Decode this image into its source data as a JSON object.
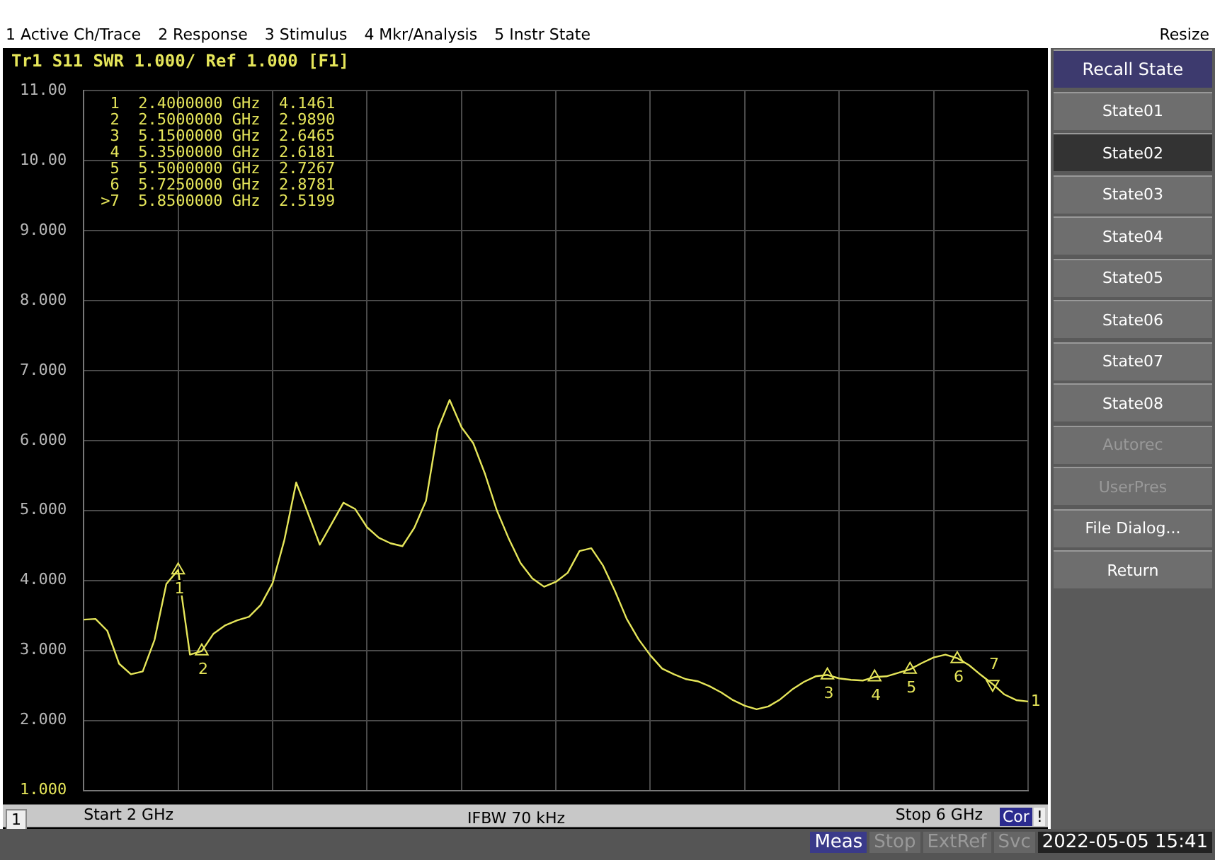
{
  "chart_data": {
    "type": "line",
    "title": "Tr1 S11 SWR 1.000/ Ref 1.000 [F1]",
    "categories": [
      null,
      null,
      null,
      null,
      null,
      null,
      null,
      null,
      null,
      null,
      null,
      null,
      null,
      null,
      null,
      null,
      null,
      null,
      null,
      null,
      null,
      null,
      null,
      null,
      null,
      null,
      null,
      null,
      null,
      null,
      null,
      null,
      null,
      null,
      null,
      null,
      null,
      null,
      null,
      null,
      null,
      null,
      null,
      null,
      null,
      null,
      null,
      null,
      null,
      null,
      null,
      null,
      null,
      null,
      null,
      null,
      null,
      null,
      null,
      null,
      null,
      null,
      null,
      null,
      null,
      null,
      null,
      null,
      null,
      null,
      null,
      null,
      null,
      null,
      null,
      null,
      null,
      null,
      null,
      null,
      null
    ],
    "series": [
      {
        "color": "#e6e65a",
        "values": [
          3.44,
          3.45,
          3.28,
          2.81,
          2.66,
          2.7,
          3.15,
          3.95,
          4.15,
          2.94,
          2.99,
          3.24,
          3.36,
          3.43,
          3.48,
          3.65,
          3.96,
          4.58,
          5.4,
          4.96,
          4.51,
          4.81,
          5.11,
          5.02,
          4.76,
          4.61,
          4.53,
          4.49,
          4.75,
          5.14,
          6.16,
          6.58,
          6.19,
          5.96,
          5.52,
          5.0,
          4.6,
          4.25,
          4.03,
          3.91,
          3.98,
          4.11,
          4.42,
          4.46,
          4.21,
          3.85,
          3.45,
          3.16,
          2.93,
          2.74,
          2.66,
          2.59,
          2.56,
          2.49,
          2.4,
          2.29,
          2.21,
          2.16,
          2.2,
          2.3,
          2.44,
          2.55,
          2.63,
          2.65,
          2.6,
          2.58,
          2.57,
          2.62,
          2.63,
          2.68,
          2.73,
          2.82,
          2.9,
          2.94,
          2.89,
          2.79,
          2.65,
          2.52,
          2.37,
          2.29,
          2.27
        ]
      },
      {
        "type": "scatter",
        "marker": "triangle",
        "color": "#e6e65a",
        "values": [
          null,
          null,
          null,
          null,
          null,
          null,
          null,
          null,
          4.1461,
          null,
          2.989,
          null,
          null,
          null,
          null,
          null,
          null,
          null,
          null,
          null,
          null,
          null,
          null,
          null,
          null,
          null,
          null,
          null,
          null,
          null,
          null,
          null,
          null,
          null,
          null,
          null,
          null,
          null,
          null,
          null,
          null,
          null,
          null,
          null,
          null,
          null,
          null,
          null,
          null,
          null,
          null,
          null,
          null,
          null,
          null,
          null,
          null,
          null,
          null,
          null,
          null,
          null,
          null,
          2.6465,
          null,
          null,
          null,
          2.6181,
          null,
          null,
          2.7267,
          null,
          null,
          null,
          2.8781,
          null,
          null,
          2.5199,
          null,
          null,
          null
        ]
      }
    ],
    "ylim": [
      1,
      11
    ],
    "yticks": [
      {
        "value": 1,
        "label": "1.000"
      },
      {
        "value": 2,
        "label": "2.000"
      },
      {
        "value": 3,
        "label": "3.000"
      },
      {
        "value": 4,
        "label": "4.000"
      },
      {
        "value": 5,
        "label": "5.000"
      },
      {
        "value": 6,
        "label": "6.000"
      },
      {
        "value": 7,
        "label": "7.000"
      },
      {
        "value": 8,
        "label": "8.000"
      },
      {
        "value": 9,
        "label": "9.000"
      },
      {
        "value": 10,
        "label": "10.00"
      },
      {
        "value": 11,
        "label": "11.00"
      }
    ],
    "grid": true,
    "marker": "none",
    "annotations": [
      "1 Active Ch/Trace",
      "2 Response",
      "3 Stimulus",
      "4 Mkr/Analysis",
      "5 Instr State",
      "Resize",
      "Recall State",
      "State01",
      "State02",
      "State03",
      "State04",
      "State05",
      "State06",
      "State07",
      "State08",
      "Autorec",
      "UserPres",
      "File Dialog...",
      "Return",
      " 1  2.4000000 GHz  4.1461",
      " 2  2.5000000 GHz  2.9890",
      " 3  5.1500000 GHz  2.6465",
      " 4  5.3500000 GHz  2.6181",
      " 5  5.5000000 GHz  2.7267",
      " 6  5.7250000 GHz  2.8781",
      ">7  5.8500000 GHz  2.5199",
      "1",
      "1",
      "IFBW 70 kHz",
      "Cor",
      "!",
      "Meas",
      "Stop",
      "ExtRef",
      "Svc",
      "2022-05-05 15:41",
      "Start 2 GHz",
      "Stop 6 GHz",
      "1",
      "2",
      "3",
      "4",
      "5",
      "6",
      "7"
    ]
  }
}
